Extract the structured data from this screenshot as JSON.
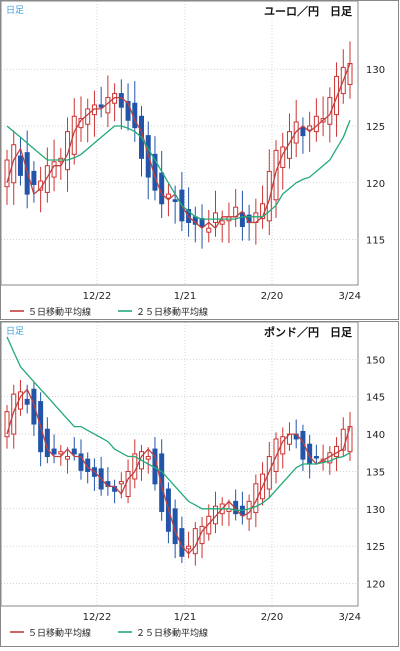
{
  "colors": {
    "up_candle": "#cc3333",
    "down_candle": "#2255aa",
    "ma5": "#c04040",
    "ma25": "#22aa77",
    "grid": "#b8b8b8",
    "frame": "#888888",
    "badge": "#3aa0d8",
    "text": "#222222"
  },
  "chart_data": [
    {
      "type": "candlestick",
      "badge": "日足",
      "title": "ユーロ／円　日足",
      "ylim": [
        111,
        136
      ],
      "y_ticks": [
        115,
        120,
        125,
        130
      ],
      "x_ticks": [
        "12/22",
        "1/21",
        "2/20",
        "3/24"
      ],
      "legend": [
        "５日移動平均線",
        "２５日移動平均線"
      ],
      "legend_placement": "bottom-left",
      "grid": true,
      "series": [
        {
          "name": "５日移動平均線",
          "type": "line",
          "values": [
            120.0,
            122.0,
            123.0,
            121.0,
            119.0,
            119.5,
            120.5,
            121.5,
            121.5,
            122.5,
            124.5,
            125.5,
            126.0,
            126.5,
            126.5,
            127.0,
            127.5,
            127.5,
            127.0,
            125.5,
            124.5,
            122.5,
            120.5,
            119.0,
            118.5,
            119.0,
            118.0,
            117.0,
            116.5,
            116.0,
            116.5,
            116.0,
            117.0,
            117.0,
            117.0,
            117.5,
            116.5,
            116.5,
            117.0,
            118.5,
            121.0,
            122.5,
            123.5,
            124.5,
            125.0,
            124.5,
            125.0,
            125.5,
            126.0,
            127.5,
            129.0,
            130.5
          ]
        },
        {
          "name": "２５日移動平均線",
          "type": "line",
          "values": [
            125.0,
            124.5,
            124.0,
            123.5,
            123.0,
            122.5,
            122.0,
            122.0,
            122.0,
            122.0,
            122.2,
            122.5,
            123.0,
            123.5,
            124.0,
            124.5,
            125.0,
            125.0,
            124.8,
            124.5,
            124.0,
            123.0,
            122.0,
            121.0,
            120.0,
            119.0,
            118.0,
            117.5,
            117.0,
            116.8,
            116.8,
            116.8,
            116.8,
            116.8,
            116.8,
            117.0,
            117.0,
            117.0,
            117.0,
            117.5,
            118.0,
            119.0,
            119.5,
            120.0,
            120.3,
            120.5,
            121.0,
            121.5,
            122.0,
            123.0,
            124.0,
            125.5
          ]
        }
      ]
    },
    {
      "type": "candlestick",
      "badge": "日足",
      "title": "ポンド／円　日足",
      "ylim": [
        117,
        155
      ],
      "y_ticks": [
        120,
        125,
        130,
        135,
        140,
        145,
        150
      ],
      "x_ticks": [
        "12/22",
        "1/21",
        "2/20",
        "3/24"
      ],
      "legend": [
        "５日移動平均線",
        "２５日移動平均線"
      ],
      "legend_placement": "bottom-left",
      "grid": true,
      "series": [
        {
          "name": "５日移動平均線",
          "type": "line",
          "values": [
            140.0,
            143.0,
            145.0,
            146.0,
            144.0,
            141.0,
            138.0,
            137.0,
            137.0,
            138.0,
            137.0,
            137.0,
            135.5,
            135.0,
            134.0,
            133.0,
            133.0,
            132.0,
            134.0,
            135.0,
            137.0,
            138.0,
            137.0,
            133.0,
            130.0,
            127.0,
            125.0,
            124.0,
            125.0,
            127.0,
            128.0,
            129.0,
            130.0,
            131.0,
            130.0,
            129.0,
            129.5,
            131.0,
            133.0,
            135.0,
            137.0,
            139.0,
            140.0,
            140.0,
            139.0,
            137.0,
            136.0,
            136.5,
            137.0,
            137.5,
            138.0,
            141.0
          ]
        },
        {
          "name": "２５日移動平均線",
          "type": "line",
          "values": [
            153.0,
            151.0,
            149.0,
            148.0,
            147.0,
            146.0,
            145.0,
            144.0,
            143.0,
            142.0,
            141.0,
            141.0,
            140.5,
            140.0,
            139.5,
            139.0,
            138.0,
            137.5,
            137.0,
            137.0,
            136.5,
            136.0,
            135.5,
            135.0,
            134.0,
            133.0,
            132.0,
            131.0,
            130.5,
            130.0,
            130.0,
            130.0,
            130.0,
            130.0,
            129.8,
            129.8,
            130.0,
            130.3,
            130.8,
            131.5,
            132.5,
            133.5,
            134.5,
            135.5,
            136.0,
            136.0,
            136.0,
            136.2,
            136.4,
            136.8,
            137.0,
            137.5
          ]
        }
      ]
    }
  ]
}
